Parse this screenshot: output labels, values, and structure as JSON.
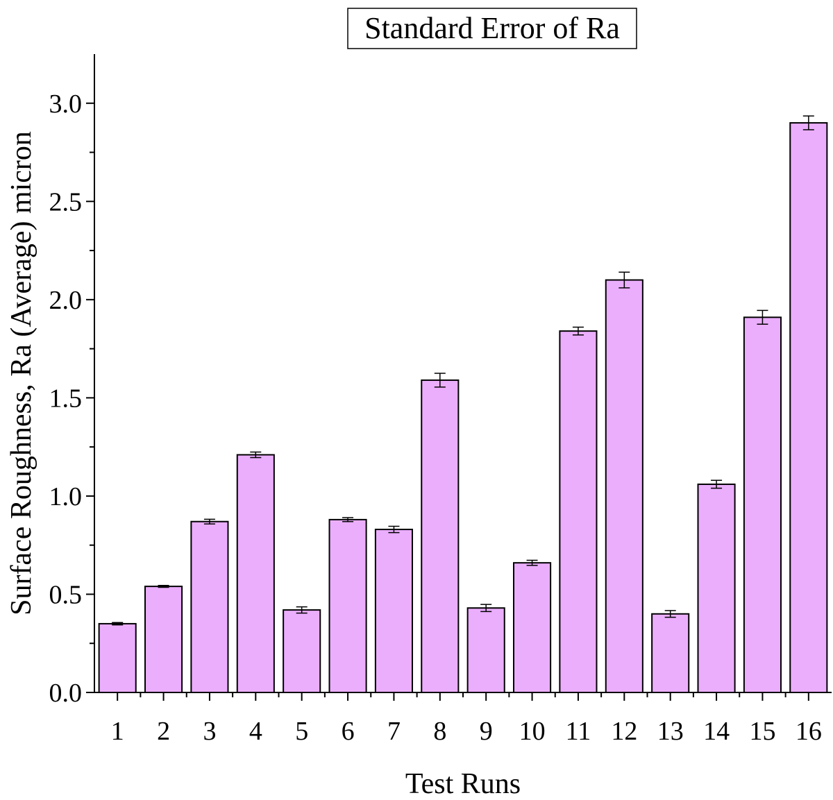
{
  "chart_data": {
    "type": "bar",
    "title": "Standard Error of Ra",
    "xlabel": "Test Runs",
    "ylabel": "Surface Roughness, Ra (Average) micron",
    "categories": [
      "1",
      "2",
      "3",
      "4",
      "5",
      "6",
      "7",
      "8",
      "9",
      "10",
      "11",
      "12",
      "13",
      "14",
      "15",
      "16"
    ],
    "values": [
      0.35,
      0.54,
      0.87,
      1.21,
      0.42,
      0.88,
      0.83,
      1.59,
      0.43,
      0.66,
      1.84,
      2.1,
      0.4,
      1.06,
      1.91,
      2.9
    ],
    "errors": [
      0.006,
      0.005,
      0.012,
      0.014,
      0.016,
      0.01,
      0.016,
      0.035,
      0.018,
      0.013,
      0.02,
      0.04,
      0.017,
      0.02,
      0.035,
      0.035
    ],
    "yticks": [
      "0.0",
      "0.5",
      "1.0",
      "1.5",
      "2.0",
      "2.5",
      "3.0"
    ],
    "ylim": [
      0,
      3.25
    ],
    "grid": false,
    "legend": "none",
    "colors": {
      "bar_fill": "#EBAEFD",
      "bar_stroke": "#000000",
      "axis": "#000000"
    }
  }
}
